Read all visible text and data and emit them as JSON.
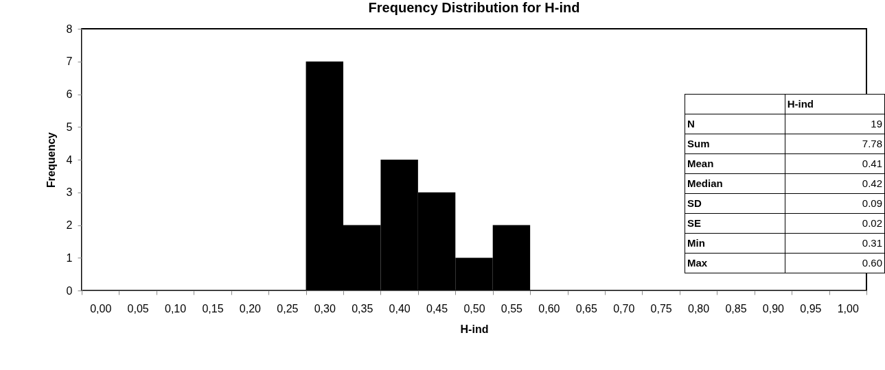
{
  "chart_data": {
    "type": "bar",
    "title": "Frequency Distribution for H-ind",
    "xlabel": "H-ind",
    "ylabel": "Frequency",
    "categories": [
      "0,00",
      "0,05",
      "0,10",
      "0,15",
      "0,20",
      "0,25",
      "0,30",
      "0,35",
      "0,40",
      "0,45",
      "0,50",
      "0,55",
      "0,60",
      "0,65",
      "0,70",
      "0,75",
      "0,80",
      "0,85",
      "0,90",
      "0,95",
      "1,00"
    ],
    "values": [
      0,
      0,
      0,
      0,
      0,
      0,
      7,
      2,
      4,
      3,
      1,
      2,
      0,
      0,
      0,
      0,
      0,
      0,
      0,
      0,
      0
    ],
    "color": "#000000",
    "ylim": [
      0,
      8
    ],
    "yticks": [
      0,
      1,
      2,
      3,
      4,
      5,
      6,
      7,
      8
    ],
    "grid": false,
    "legend": false,
    "annotations": [
      "H-ind",
      "N",
      "19",
      "Sum",
      "7.78",
      "Mean",
      "0.41",
      "Median",
      "0.42",
      "SD",
      "0.09",
      "SE",
      "0.02",
      "Min",
      "0.31",
      "Max",
      "0.60"
    ]
  }
}
